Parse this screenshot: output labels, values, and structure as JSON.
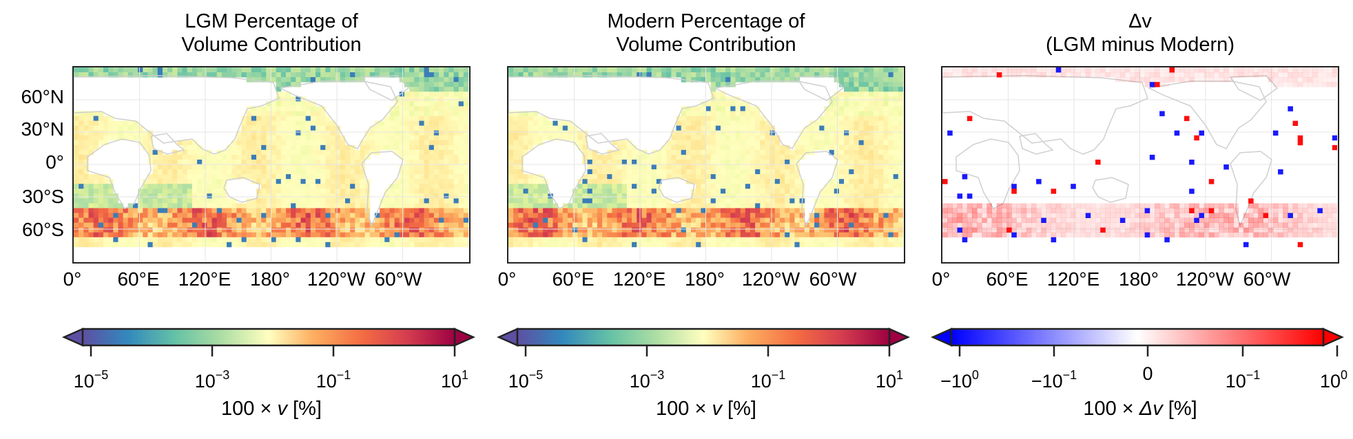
{
  "chart_data": [
    {
      "type": "heatmap",
      "title_line1": "LGM Percentage of",
      "title_line2": "Volume Contribution",
      "x_ticks": [
        "0°",
        "60°E",
        "120°E",
        "180°",
        "120°W",
        "60°W"
      ],
      "y_ticks": [
        "60°N",
        "30°N",
        "0°",
        "30°S",
        "60°S"
      ],
      "colorbar": {
        "cmap": "Spectral_r",
        "scale": "log",
        "range": [
          1e-05,
          10
        ],
        "ticks": [
          {
            "base": "10",
            "exp": "−5"
          },
          {
            "base": "10",
            "exp": "−3"
          },
          {
            "base": "10",
            "exp": "−1"
          },
          {
            "base": "10",
            "exp": "1"
          }
        ],
        "label_prefix": "100 × ",
        "label_var": "v",
        "label_suffix": " [%]"
      }
    },
    {
      "type": "heatmap",
      "title_line1": "Modern Percentage of",
      "title_line2": "Volume Contribution",
      "x_ticks": [
        "0°",
        "60°E",
        "120°E",
        "180°",
        "120°W",
        "60°W"
      ],
      "y_ticks": [],
      "colorbar": {
        "cmap": "Spectral_r",
        "scale": "log",
        "range": [
          1e-05,
          10
        ],
        "ticks": [
          {
            "base": "10",
            "exp": "−5"
          },
          {
            "base": "10",
            "exp": "−3"
          },
          {
            "base": "10",
            "exp": "−1"
          },
          {
            "base": "10",
            "exp": "1"
          }
        ],
        "label_prefix": "100 × ",
        "label_var": "v",
        "label_suffix": " [%]"
      }
    },
    {
      "type": "heatmap",
      "title_line1": "Δv",
      "title_line2": "(LGM minus Modern)",
      "x_ticks": [
        "0°",
        "60°E",
        "120°E",
        "180°",
        "120°W",
        "60°W"
      ],
      "y_ticks": [],
      "colorbar": {
        "cmap": "bwr",
        "scale": "symlog",
        "range": [
          -1,
          1
        ],
        "ticks": [
          {
            "base": "−10",
            "exp": "0"
          },
          {
            "base": "−10",
            "exp": "−1"
          },
          {
            "base": "0",
            "exp": ""
          },
          {
            "base": "10",
            "exp": "−1"
          },
          {
            "base": "10",
            "exp": "0"
          }
        ],
        "label_prefix": "100 × ",
        "label_var": "Δv",
        "label_suffix": " [%]"
      }
    }
  ]
}
